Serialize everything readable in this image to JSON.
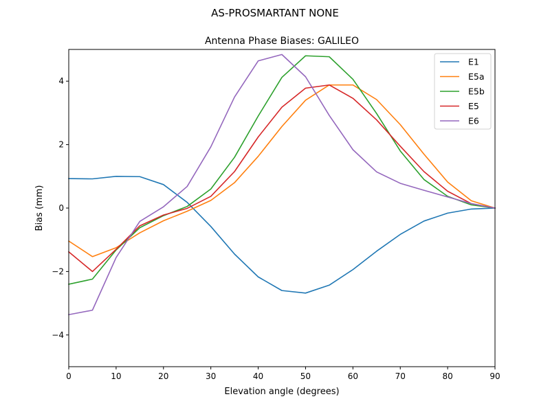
{
  "figure": {
    "suptitle": "AS-PROSMARTANT  NONE"
  },
  "chart_data": {
    "type": "line",
    "title": "Antenna Phase Biases: GALILEO",
    "xlabel": "Elevation angle (degrees)",
    "ylabel": "Bias (mm)",
    "xlim": [
      0,
      90
    ],
    "ylim": [
      -5,
      5
    ],
    "xticks": [
      0,
      10,
      20,
      30,
      40,
      50,
      60,
      70,
      80,
      90
    ],
    "yticks": [
      -4,
      -2,
      0,
      2,
      4
    ],
    "grid": false,
    "legend_position": "top-right",
    "x": [
      0,
      5,
      10,
      15,
      20,
      25,
      30,
      35,
      40,
      45,
      50,
      55,
      60,
      65,
      70,
      75,
      80,
      85,
      90
    ],
    "series": [
      {
        "name": "E1",
        "color": "#1f77b4",
        "values": [
          0.93,
          0.92,
          1.0,
          0.99,
          0.74,
          0.18,
          -0.58,
          -1.45,
          -2.17,
          -2.6,
          -2.68,
          -2.43,
          -1.94,
          -1.36,
          -0.83,
          -0.41,
          -0.16,
          -0.03,
          0.0
        ]
      },
      {
        "name": "E5a",
        "color": "#ff7f0e",
        "values": [
          -1.04,
          -1.53,
          -1.25,
          -0.78,
          -0.4,
          -0.1,
          0.24,
          0.8,
          1.63,
          2.57,
          3.4,
          3.88,
          3.88,
          3.42,
          2.63,
          1.7,
          0.82,
          0.23,
          0.0
        ]
      },
      {
        "name": "E5b",
        "color": "#2ca02c",
        "values": [
          -2.4,
          -2.24,
          -1.32,
          -0.62,
          -0.24,
          0.05,
          0.6,
          1.6,
          2.9,
          4.12,
          4.8,
          4.77,
          4.06,
          2.98,
          1.8,
          0.9,
          0.37,
          0.1,
          0.0
        ]
      },
      {
        "name": "E5",
        "color": "#d62728",
        "values": [
          -1.38,
          -2.0,
          -1.3,
          -0.56,
          -0.22,
          -0.01,
          0.37,
          1.15,
          2.24,
          3.18,
          3.78,
          3.88,
          3.46,
          2.78,
          1.95,
          1.15,
          0.53,
          0.14,
          0.0
        ]
      },
      {
        "name": "E6",
        "color": "#9467bd",
        "values": [
          -3.36,
          -3.22,
          -1.56,
          -0.42,
          0.04,
          0.68,
          1.93,
          3.5,
          4.64,
          4.84,
          4.14,
          2.92,
          1.84,
          1.14,
          0.78,
          0.56,
          0.35,
          0.14,
          0.0
        ]
      }
    ]
  }
}
